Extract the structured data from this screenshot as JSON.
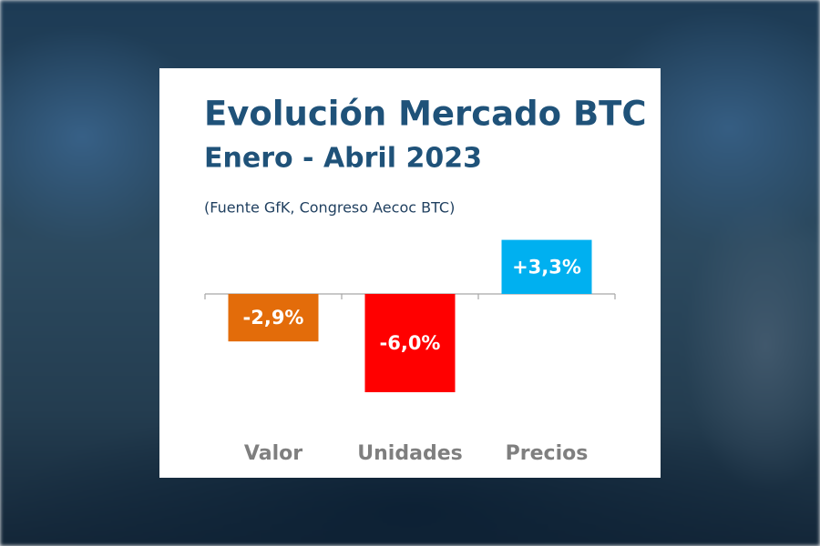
{
  "chart_data": {
    "type": "bar",
    "title": "Evolución Mercado BTC",
    "subtitle": "Enero - Abril 2023",
    "source": "(Fuente GfK, Congreso Aecoc BTC)",
    "categories": [
      "Valor",
      "Unidades",
      "Precios"
    ],
    "values": [
      -2.9,
      -6.0,
      3.3
    ],
    "value_labels": [
      "-2,9%",
      "-6,0%",
      "+3,3%"
    ],
    "colors": [
      "#e36c0a",
      "#ff0000",
      "#00b0f0"
    ]
  }
}
